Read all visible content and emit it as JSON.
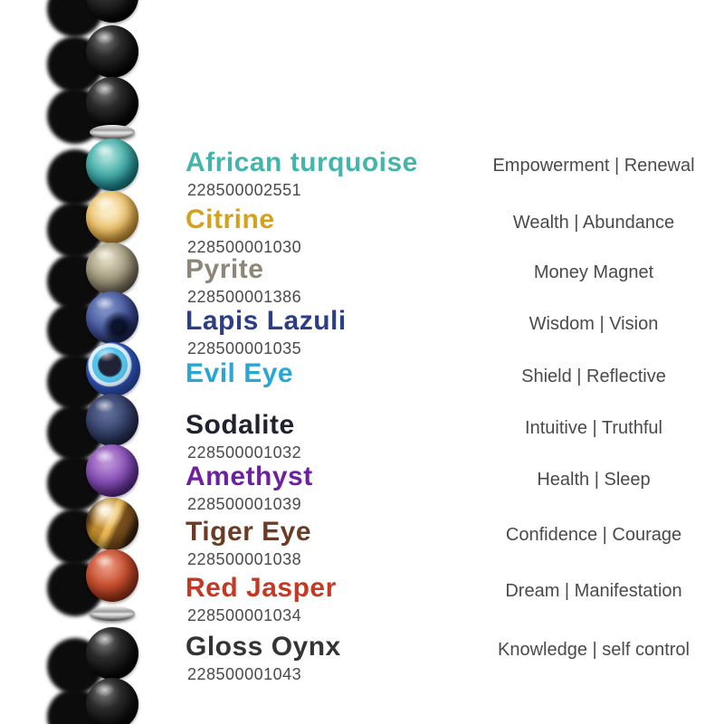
{
  "page": {
    "background": "#ffffff",
    "description": "Chakra gemstone bracelet infographic"
  },
  "bracelet": {
    "shadow_color": "#0c0c0c",
    "spacer_color": "#c0c0c0",
    "beads": [
      {
        "kind": "bead",
        "stone": "Black Onyx"
      },
      {
        "kind": "bead",
        "stone": "Black Onyx"
      },
      {
        "kind": "bead",
        "stone": "Black Onyx"
      },
      {
        "kind": "spacer",
        "stone": "Silver spacer"
      },
      {
        "kind": "bead",
        "stone": "African turquoise"
      },
      {
        "kind": "bead",
        "stone": "Citrine"
      },
      {
        "kind": "bead",
        "stone": "Pyrite"
      },
      {
        "kind": "bead",
        "stone": "Lapis Lazuli"
      },
      {
        "kind": "bead",
        "stone": "Evil Eye"
      },
      {
        "kind": "bead",
        "stone": "Sodalite"
      },
      {
        "kind": "bead",
        "stone": "Amethyst"
      },
      {
        "kind": "bead",
        "stone": "Tiger Eye"
      },
      {
        "kind": "bead",
        "stone": "Red Jasper"
      },
      {
        "kind": "spacer",
        "stone": "Silver spacer"
      },
      {
        "kind": "bead",
        "stone": "Black Onyx"
      },
      {
        "kind": "bead",
        "stone": "Black Onyx"
      }
    ]
  },
  "stones": [
    {
      "name": "African turquoise",
      "sku": "228500002551",
      "meaning": "Empowerment | Renewal",
      "color": "#45b5ab"
    },
    {
      "name": "Citrine",
      "sku": "228500001030",
      "meaning": "Wealth | Abundance",
      "color": "#d3a21c"
    },
    {
      "name": "Pyrite",
      "sku": "228500001386",
      "meaning": "Money Magnet",
      "color": "#8e8778"
    },
    {
      "name": "Lapis Lazuli",
      "sku": "228500001035",
      "meaning": "Wisdom | Vision",
      "color": "#2c3e85"
    },
    {
      "name": "Evil Eye",
      "sku": "",
      "meaning": "Shield | Reflective",
      "color": "#2aa6d5"
    },
    {
      "name": "Sodalite",
      "sku": "228500001032",
      "meaning": "Intuitive | Truthful",
      "color": "#20222f"
    },
    {
      "name": "Amethyst",
      "sku": "228500001039",
      "meaning": "Health | Sleep",
      "color": "#6d21a1"
    },
    {
      "name": "Tiger Eye",
      "sku": "228500001038",
      "meaning": "Confidence | Courage",
      "color": "#6b3b26"
    },
    {
      "name": "Red Jasper",
      "sku": "228500001034",
      "meaning": "Dream | Manifestation",
      "color": "#c23a25"
    },
    {
      "name": "Gloss Oynx",
      "sku": "228500001043",
      "meaning": "Knowledge | self control",
      "color": "#343434"
    }
  ],
  "text_colors": {
    "sku": "#4a4a4a",
    "meaning": "#4a4a4a"
  }
}
